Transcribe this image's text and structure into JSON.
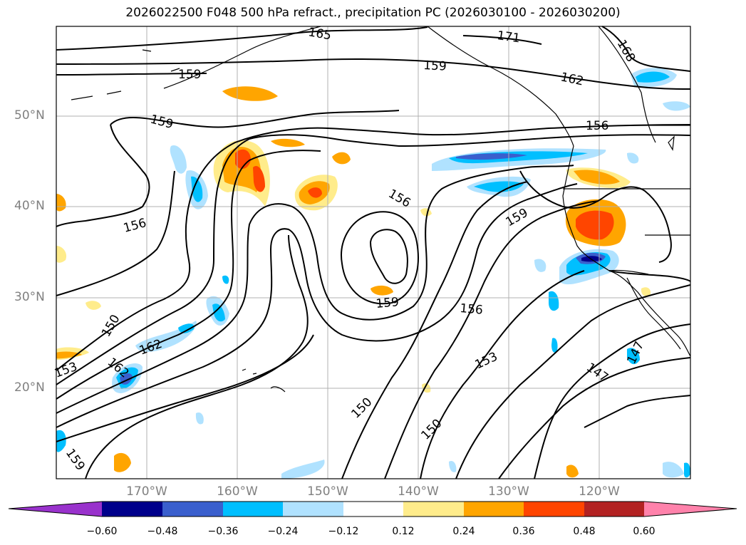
{
  "title": "2026022500 F048 500 hPa refract., precipitation PC (2026030100 - 2026030200)",
  "map": {
    "lat_labels": [
      "50°N",
      "40°N",
      "30°N",
      "20°N"
    ],
    "lon_labels": [
      "170°W",
      "160°W",
      "150°W",
      "140°W",
      "130°W",
      "120°W"
    ],
    "contour_labels": [
      "165",
      "171",
      "168",
      "159",
      "159",
      "162",
      "156",
      "159",
      "156",
      "156",
      "159",
      "159",
      "156",
      "150",
      "162",
      "162",
      "153",
      "153",
      "147",
      "147",
      "150",
      "150",
      "159"
    ]
  },
  "colorbar": {
    "ticks": [
      "−0.60",
      "−0.48",
      "−0.36",
      "−0.24",
      "−0.12",
      "0.12",
      "0.24",
      "0.36",
      "0.48",
      "0.60"
    ],
    "colors": [
      "#9932cc",
      "#00008b",
      "#3a5fcd",
      "#00bfff",
      "#b0e2ff",
      "#ffffff",
      "#ffec8b",
      "#ffa500",
      "#ff4500",
      "#b22222",
      "#ff82ab"
    ]
  }
}
